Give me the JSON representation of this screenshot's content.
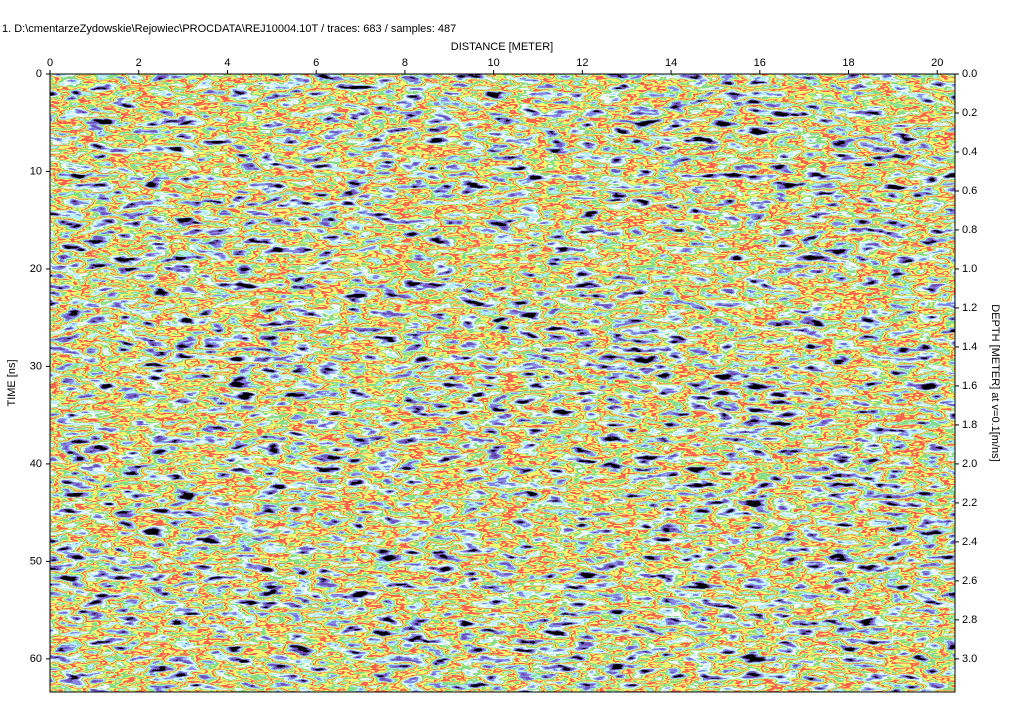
{
  "chart_data": {
    "type": "radargram",
    "title": "1. D:\\cmentarzeZydowskie\\Rejowiec\\PROCDATA\\REJ10004.10T / traces: 683 / samples: 487",
    "x_label": "DISTANCE [METER]",
    "y_label": "TIME [ns]",
    "y2_label": "DEPTH [METER] at v=0.1[m/ns]",
    "xlim": [
      0,
      20.4
    ],
    "xticks": [
      0,
      2,
      4,
      6,
      8,
      10,
      12,
      14,
      16,
      18,
      20
    ],
    "ylim": [
      0,
      63.4
    ],
    "yticks": [
      0,
      10,
      20,
      30,
      40,
      50,
      60
    ],
    "y2lim": [
      0,
      3.17
    ],
    "y2ticks": [
      {
        "value": 0,
        "label": "0.0"
      },
      0.2,
      0.4,
      0.6,
      0.8,
      {
        "value": 1,
        "label": "1.0"
      },
      1.2,
      1.4,
      1.6,
      1.8,
      {
        "value": 2,
        "label": "2.0"
      },
      2.2,
      2.4,
      2.6,
      2.8,
      {
        "value": 3,
        "label": "3.0"
      }
    ]
  }
}
